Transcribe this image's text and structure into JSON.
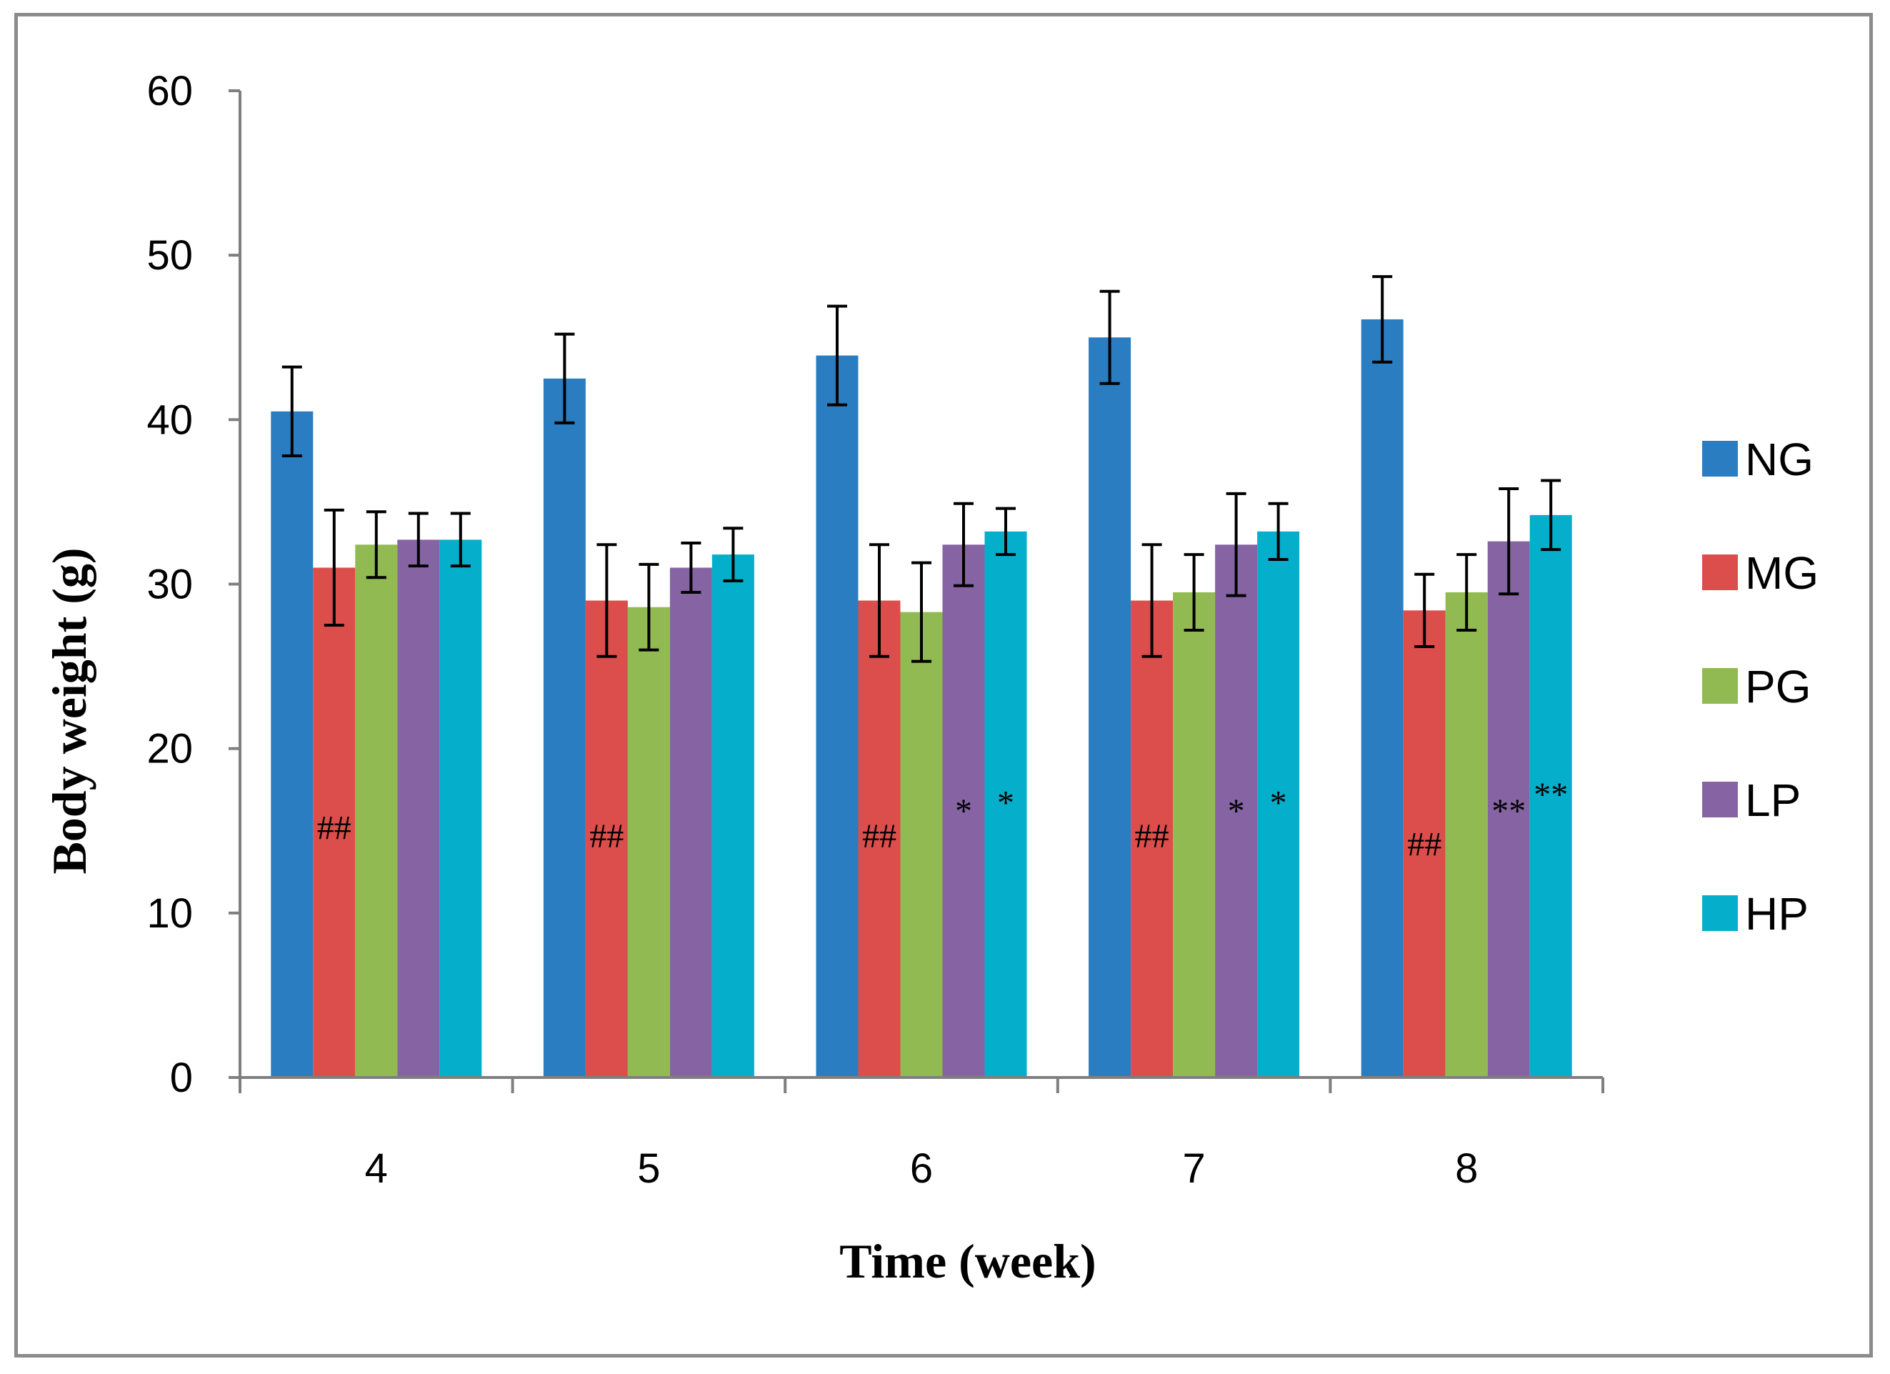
{
  "chart_data": {
    "type": "bar",
    "xlabel": "Time (week)",
    "ylabel": "Body weight  (g)",
    "ylim": [
      0,
      60
    ],
    "yticks": [
      0,
      10,
      20,
      30,
      40,
      50,
      60
    ],
    "categories": [
      "4",
      "5",
      "6",
      "7",
      "8"
    ],
    "grid": false,
    "legend_position": "right",
    "series": [
      {
        "name": "NG",
        "color": "#2A7DC0",
        "values": [
          40.5,
          42.5,
          43.9,
          45.0,
          46.1
        ],
        "errors": [
          2.7,
          2.7,
          3.0,
          2.8,
          2.6
        ]
      },
      {
        "name": "MG",
        "color": "#DB4E4B",
        "values": [
          31.0,
          29.0,
          29.0,
          29.0,
          28.4
        ],
        "errors": [
          3.5,
          3.4,
          3.4,
          3.4,
          2.2
        ]
      },
      {
        "name": "PG",
        "color": "#91BA52",
        "values": [
          32.4,
          28.6,
          28.3,
          29.5,
          29.5
        ],
        "errors": [
          2.0,
          2.6,
          3.0,
          2.3,
          2.3
        ]
      },
      {
        "name": "LP",
        "color": "#8664A4",
        "values": [
          32.7,
          31.0,
          32.4,
          32.4,
          32.6
        ],
        "errors": [
          1.6,
          1.5,
          2.5,
          3.1,
          3.2
        ]
      },
      {
        "name": "HP",
        "color": "#05AECA",
        "values": [
          32.7,
          31.8,
          33.2,
          33.2,
          34.2
        ],
        "errors": [
          1.6,
          1.6,
          1.4,
          1.7,
          2.1
        ]
      }
    ],
    "annotations": [
      {
        "text": "##",
        "category": "4",
        "series": "MG",
        "y": 14.5
      },
      {
        "text": "##",
        "category": "5",
        "series": "MG",
        "y": 14.0
      },
      {
        "text": "##",
        "category": "6",
        "series": "MG",
        "y": 14.0
      },
      {
        "text": "##",
        "category": "7",
        "series": "MG",
        "y": 14.0
      },
      {
        "text": "##",
        "category": "8",
        "series": "MG",
        "y": 13.5
      },
      {
        "text": "*",
        "category": "6",
        "series": "LP",
        "y": 15.5
      },
      {
        "text": "*",
        "category": "6",
        "series": "HP",
        "y": 16.0
      },
      {
        "text": "*",
        "category": "7",
        "series": "LP",
        "y": 15.5
      },
      {
        "text": "*",
        "category": "7",
        "series": "HP",
        "y": 16.0
      },
      {
        "text": "**",
        "category": "8",
        "series": "LP",
        "y": 15.5
      },
      {
        "text": "**",
        "category": "8",
        "series": "HP",
        "y": 16.5
      }
    ]
  }
}
